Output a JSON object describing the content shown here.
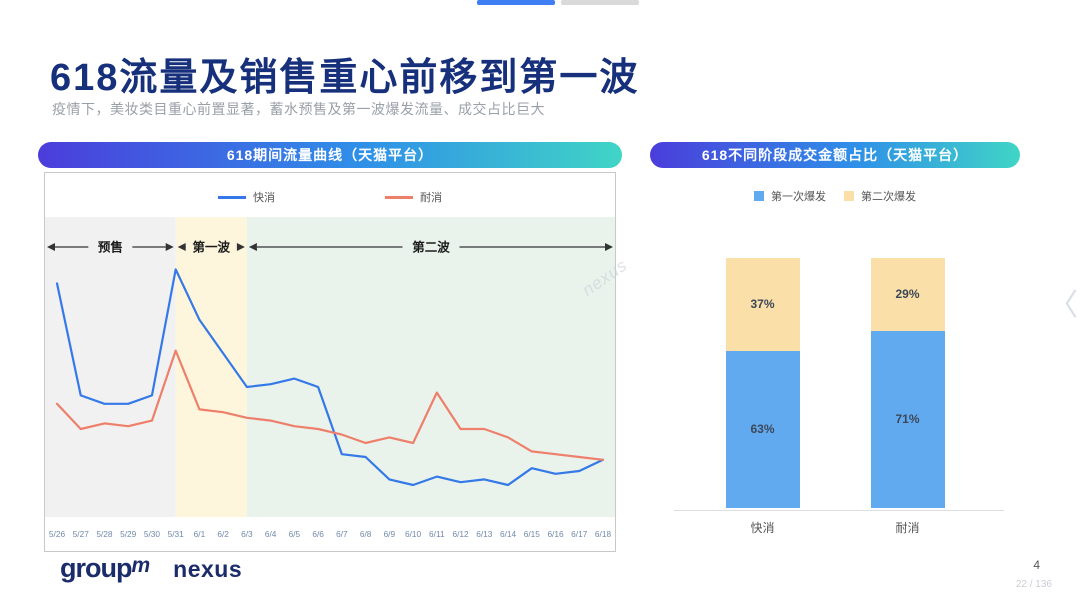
{
  "page": {
    "title": "618流量及销售重心前移到第一波",
    "subtitle": "疫情下，美妆类目重心前置显著，蓄水预售及第一波爆发流量、成交占比巨大",
    "page_number": "4",
    "page_indicator": "22 / 136",
    "watermark": "nexus",
    "chevron": "〈"
  },
  "footer": {
    "brand_group": "group",
    "brand_group_m": "m",
    "brand_nexus": "nexus"
  },
  "colors": {
    "line_blue": "#3579e8",
    "line_red": "#ee7f6a",
    "bar_blue": "#62aaf0",
    "bar_orange": "#fbdfa8",
    "pill_gradient_start": "#4b3ddb",
    "pill_gradient_end": "#40d5c6",
    "title_navy": "#17307c"
  },
  "chart_data": [
    {
      "type": "line",
      "title": "618期间流量曲线（天猫平台）",
      "x": [
        "5/26",
        "5/27",
        "5/28",
        "5/29",
        "5/30",
        "5/31",
        "6/1",
        "6/2",
        "6/3",
        "6/4",
        "6/5",
        "6/6",
        "6/7",
        "6/8",
        "6/9",
        "6/10",
        "6/11",
        "6/12",
        "6/13",
        "6/14",
        "6/15",
        "6/16",
        "6/17",
        "6/18"
      ],
      "series": [
        {
          "name": "快消",
          "color": "#3579e8",
          "values": [
            82,
            42,
            39,
            39,
            42,
            87,
            69,
            57,
            45,
            46,
            48,
            45,
            21,
            20,
            12,
            10,
            13,
            11,
            12,
            10,
            16,
            14,
            15,
            19
          ]
        },
        {
          "name": "耐消",
          "color": "#ee7f6a",
          "values": [
            39,
            30,
            32,
            31,
            33,
            58,
            37,
            36,
            34,
            33,
            31,
            30,
            28,
            25,
            27,
            25,
            43,
            30,
            30,
            27,
            22,
            21,
            20,
            19
          ]
        }
      ],
      "ylim": [
        0,
        100
      ],
      "grid": false,
      "legend_position": "top",
      "regions": [
        {
          "label": "预售",
          "from": 0,
          "to": 5,
          "color": "#f1f1f1"
        },
        {
          "label": "第一波",
          "from": 5,
          "to": 8,
          "color": "#fdf6dc"
        },
        {
          "label": "第二波",
          "from": 8,
          "to": 23,
          "color": "#e9f3ec"
        }
      ]
    },
    {
      "type": "bar",
      "subtype": "stacked",
      "title": "618不同阶段成交金额占比（天猫平台）",
      "categories": [
        "快消",
        "耐消"
      ],
      "series": [
        {
          "name": "第一次爆发",
          "color": "#62aaf0",
          "values": [
            63,
            71
          ]
        },
        {
          "name": "第二次爆发",
          "color": "#fbdfa8",
          "values": [
            37,
            29
          ]
        }
      ],
      "value_format": "percent",
      "ylim": [
        0,
        100
      ],
      "legend_position": "top"
    }
  ]
}
